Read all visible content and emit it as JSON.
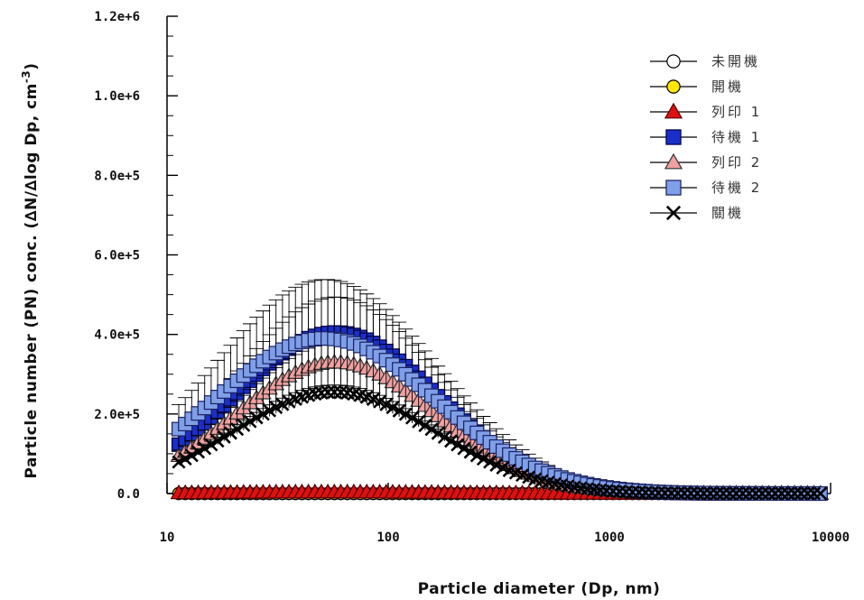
{
  "chart_data": {
    "type": "scatter",
    "xlabel": "Particle diameter (Dp, nm)",
    "ylabel": "Particle number (PN) conc. (∆N/∆log Dp, cm",
    "ylabel_superscript": "-3",
    "ylabel_suffix": ")",
    "x_scale": "log",
    "xlim": [
      10,
      10000
    ],
    "ylim": [
      0,
      1200000
    ],
    "x_ticks": [
      10,
      100,
      1000,
      10000
    ],
    "x_tick_labels": [
      "10",
      "100",
      "1000",
      "10000"
    ],
    "y_ticks": [
      0,
      200000,
      400000,
      600000,
      800000,
      1000000,
      1200000
    ],
    "y_tick_labels": [
      "0.0",
      "2.0e+5",
      "4.0e+5",
      "6.0e+5",
      "8.0e+5",
      "1.0e+6",
      "1.2e+6"
    ],
    "grid": false,
    "legend_position": "top-right",
    "dp_range": [
      11.3,
      9000
    ],
    "points_per_series": 100,
    "series": [
      {
        "name": "未開機",
        "marker": "circle",
        "fill": "#ffffff",
        "stroke": "#000000",
        "peak": 0,
        "mode_dp": 55,
        "sigma": 0.5,
        "error_frac": 0
      },
      {
        "name": "開機",
        "marker": "circle",
        "fill": "#ffe800",
        "stroke": "#000000",
        "peak": 0,
        "mode_dp": 55,
        "sigma": 0.5,
        "error_frac": 0
      },
      {
        "name": "列印 1",
        "marker": "triangle",
        "fill": "#dd1111",
        "stroke": "#550000",
        "peak": 3500,
        "mode_dp": 55,
        "sigma": 0.5,
        "error_frac": 0
      },
      {
        "name": "待機 1",
        "marker": "square",
        "fill": "#1a2fc8",
        "stroke": "#000044",
        "peak": 405000,
        "mode_dp": 58,
        "sigma": 0.46,
        "error_frac": 0.22
      },
      {
        "name": "列印 2",
        "marker": "triangle",
        "fill": "#f0a0a0",
        "stroke": "#333333",
        "peak": 330000,
        "mode_dp": 58,
        "sigma": 0.45,
        "error_frac": 0.15
      },
      {
        "name": "待機 2",
        "marker": "square",
        "fill": "#7f9fe8",
        "stroke": "#1a2060",
        "peak": 390000,
        "mode_dp": 52,
        "sigma": 0.5,
        "error_frac": 0.38
      },
      {
        "name": "關機",
        "marker": "x",
        "fill": "none",
        "stroke": "#000000",
        "peak": 255000,
        "mode_dp": 57,
        "sigma": 0.46,
        "error_frac": 0.07
      }
    ]
  }
}
